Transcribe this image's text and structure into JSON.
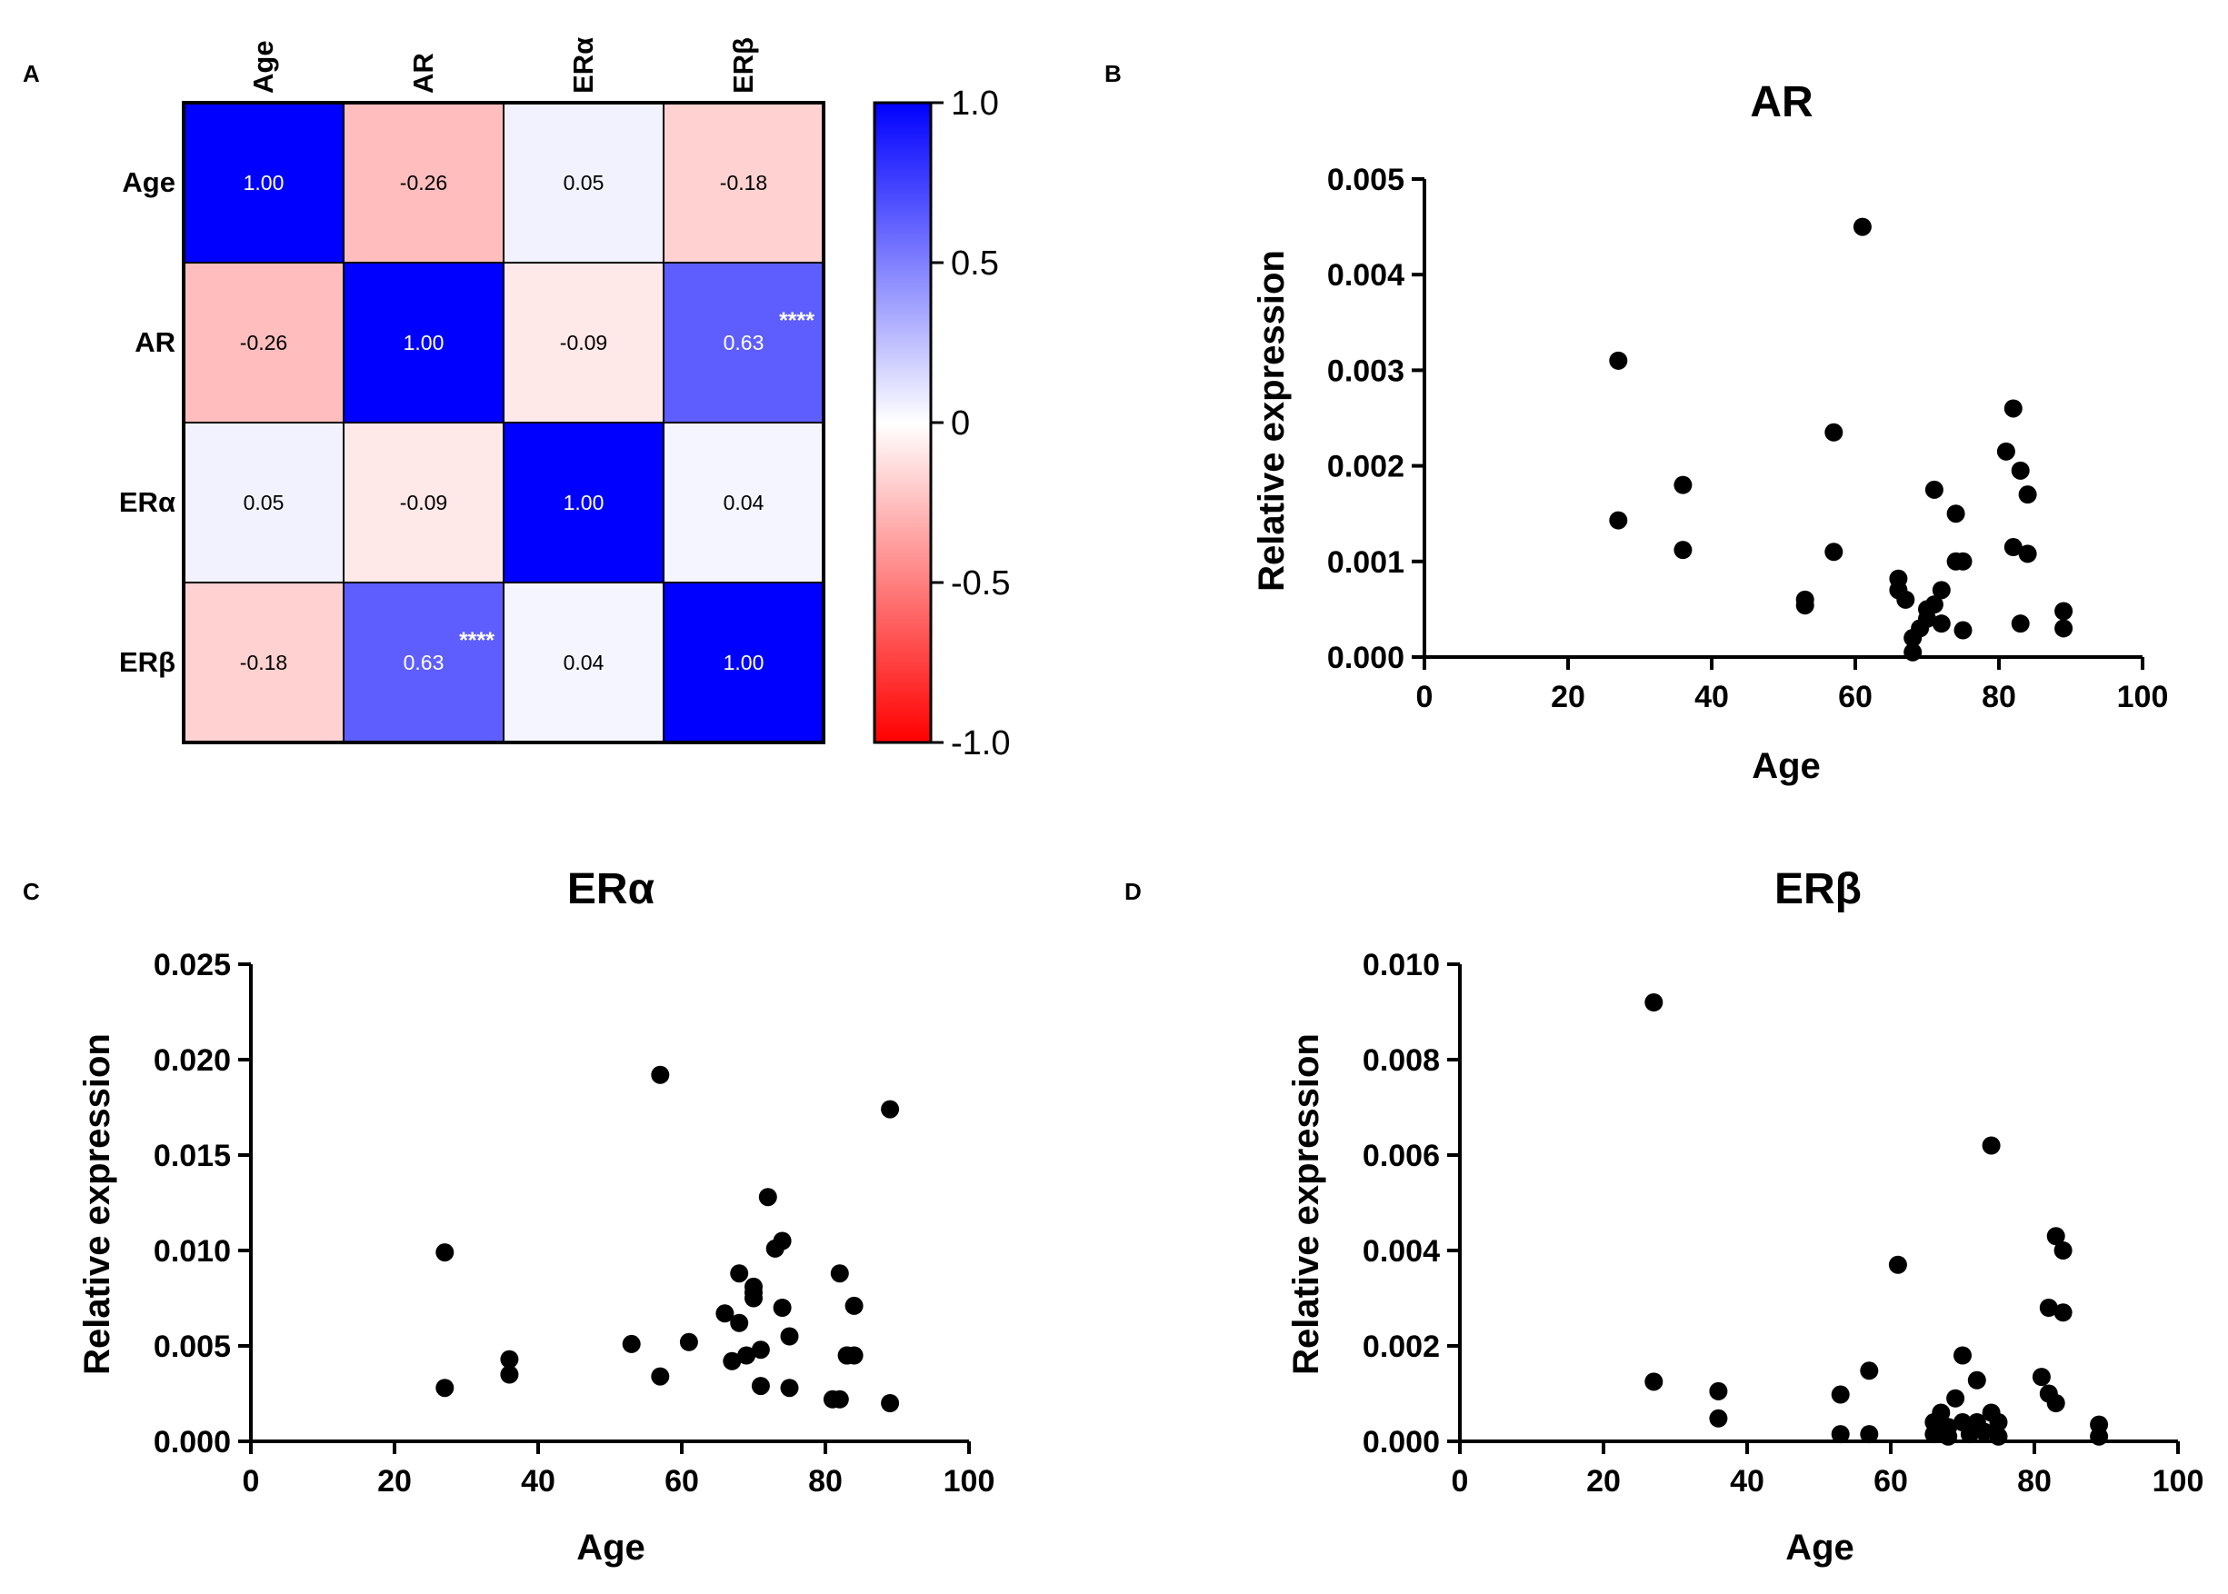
{
  "panel_labels": [
    "A",
    "B",
    "C",
    "D"
  ],
  "chart_data": [
    {
      "type": "heatmap",
      "panel": "A",
      "title": "",
      "row_labels": [
        "Age",
        "AR",
        "ERα",
        "ERβ"
      ],
      "col_labels": [
        "Age",
        "AR",
        "ERα",
        "ERβ"
      ],
      "values": [
        [
          1.0,
          -0.26,
          0.05,
          -0.18
        ],
        [
          -0.26,
          1.0,
          -0.09,
          0.63
        ],
        [
          0.05,
          -0.09,
          1.0,
          0.04
        ],
        [
          -0.18,
          0.63,
          0.04,
          1.0
        ]
      ],
      "value_labels": [
        [
          "1.00",
          "-0.26",
          "0.05",
          "-0.18"
        ],
        [
          "-0.26",
          "1.00",
          "-0.09",
          "0.63"
        ],
        [
          "0.05",
          "-0.09",
          "1.00",
          "0.04"
        ],
        [
          "-0.18",
          "0.63",
          "0.04",
          "1.00"
        ]
      ],
      "significance": [
        {
          "row": 1,
          "col": 3,
          "label": "****"
        },
        {
          "row": 3,
          "col": 1,
          "label": "****"
        }
      ],
      "colorbar": {
        "range": [
          -1.0,
          1.0
        ],
        "ticks": [
          1.0,
          0.5,
          0,
          -0.5,
          -1.0
        ],
        "tick_labels": [
          "1.0",
          "0.5",
          "0",
          "-0.5",
          "-1.0"
        ],
        "colors": {
          "max": "#0000ff",
          "mid": "#ffffff",
          "min": "#ff0000"
        }
      }
    },
    {
      "type": "scatter",
      "panel": "B",
      "title": "AR",
      "xlabel": "Age",
      "ylabel": "Relative expression",
      "xlim": [
        0,
        100
      ],
      "ylim": [
        0,
        0.005
      ],
      "xticks": [
        0,
        20,
        40,
        60,
        80,
        100
      ],
      "xtick_labels": [
        "0",
        "20",
        "40",
        "60",
        "80",
        "100"
      ],
      "yticks": [
        0,
        0.001,
        0.002,
        0.003,
        0.004,
        0.005
      ],
      "ytick_labels": [
        "0.000",
        "0.001",
        "0.002",
        "0.003",
        "0.004",
        "0.005"
      ],
      "x": [
        27,
        27,
        36,
        36,
        53,
        53,
        57,
        57,
        61,
        66,
        66,
        67,
        68,
        68,
        69,
        70,
        70,
        71,
        71,
        72,
        72,
        74,
        74,
        75,
        75,
        81,
        82,
        82,
        83,
        83,
        84,
        84,
        89,
        89
      ],
      "y": [
        0.0031,
        0.00143,
        0.0018,
        0.00112,
        0.0006,
        0.00054,
        0.00235,
        0.0011,
        0.0045,
        0.00082,
        0.0007,
        0.0006,
        0.0002,
        5e-05,
        0.0003,
        0.0005,
        0.0004,
        0.00175,
        0.00055,
        0.0007,
        0.00035,
        0.0015,
        0.001,
        0.001,
        0.00028,
        0.00215,
        0.0026,
        0.00115,
        0.00195,
        0.00035,
        0.0017,
        0.00108,
        0.00048,
        0.0003
      ]
    },
    {
      "type": "scatter",
      "panel": "C",
      "title": "ERα",
      "xlabel": "Age",
      "ylabel": "Relative expression",
      "xlim": [
        0,
        100
      ],
      "ylim": [
        0,
        0.025
      ],
      "xticks": [
        0,
        20,
        40,
        60,
        80,
        100
      ],
      "xtick_labels": [
        "0",
        "20",
        "40",
        "60",
        "80",
        "100"
      ],
      "yticks": [
        0,
        0.005,
        0.01,
        0.015,
        0.02,
        0.025
      ],
      "ytick_labels": [
        "0.000",
        "0.005",
        "0.010",
        "0.015",
        "0.020",
        "0.025"
      ],
      "x": [
        27,
        27,
        36,
        36,
        53,
        57,
        57,
        61,
        66,
        67,
        68,
        68,
        69,
        70,
        70,
        70,
        71,
        71,
        72,
        73,
        74,
        74,
        75,
        75,
        81,
        82,
        82,
        83,
        83,
        84,
        84,
        89,
        89
      ],
      "y": [
        0.0099,
        0.0028,
        0.0043,
        0.0035,
        0.0051,
        0.0192,
        0.0034,
        0.0052,
        0.0067,
        0.0042,
        0.0062,
        0.0088,
        0.0045,
        0.0081,
        0.0078,
        0.0075,
        0.0029,
        0.0048,
        0.0128,
        0.0101,
        0.0105,
        0.007,
        0.0055,
        0.0028,
        0.0022,
        0.0088,
        0.0022,
        0.0045,
        0.0045,
        0.0071,
        0.0045,
        0.0174,
        0.002
      ]
    },
    {
      "type": "scatter",
      "panel": "D",
      "title": "ERβ",
      "xlabel": "Age",
      "ylabel": "Relative expression",
      "xlim": [
        0,
        100
      ],
      "ylim": [
        0,
        0.01
      ],
      "xticks": [
        0,
        20,
        40,
        60,
        80,
        100
      ],
      "xtick_labels": [
        "0",
        "20",
        "40",
        "60",
        "80",
        "100"
      ],
      "yticks": [
        0,
        0.002,
        0.004,
        0.006,
        0.008,
        0.01
      ],
      "ytick_labels": [
        "0.000",
        "0.002",
        "0.004",
        "0.006",
        "0.008",
        "0.010"
      ],
      "x": [
        27,
        27,
        36,
        36,
        53,
        53,
        57,
        57,
        61,
        66,
        66,
        67,
        68,
        68,
        69,
        70,
        70,
        71,
        71,
        72,
        72,
        73,
        74,
        74,
        75,
        75,
        81,
        82,
        82,
        83,
        83,
        84,
        84,
        89,
        89
      ],
      "y": [
        0.0092,
        0.00125,
        0.00105,
        0.00048,
        0.00098,
        0.00015,
        0.00148,
        0.00015,
        0.0037,
        0.0004,
        0.00015,
        0.0006,
        0.0003,
        0.0001,
        0.0009,
        0.0018,
        0.0004,
        0.0003,
        0.00015,
        0.00128,
        0.0004,
        0.0002,
        0.0062,
        0.0006,
        0.0004,
        0.0001,
        0.00135,
        0.0028,
        0.001,
        0.0043,
        0.0008,
        0.004,
        0.0027,
        0.00035,
        0.0001
      ]
    }
  ]
}
